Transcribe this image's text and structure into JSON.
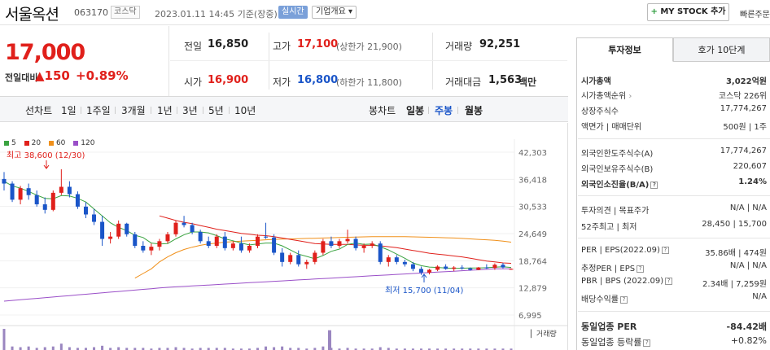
{
  "header": {
    "stock_name": "서울옥션",
    "stock_code": "063170",
    "market": "코스닥",
    "time": "2023.01.11 14:45 기준(장중)",
    "realtime": "실시간",
    "company_overview": "기업개요 ▾",
    "my_stock_button": "MY STOCK 추가",
    "my_stock_plus": "+",
    "quick_order": "빠른주문"
  },
  "price": {
    "current": "17,000",
    "prev_day_label": "전일대비",
    "change_amount": "▲150",
    "change_percent": "+0.89%"
  },
  "summary": {
    "prev_close_label": "전일",
    "prev_close": "16,850",
    "high_label": "고가",
    "high": "17,100",
    "upper_limit": "(상한가 21,900)",
    "volume_label": "거래량",
    "volume": "92,251",
    "open_label": "시가",
    "open": "16,900",
    "low_label": "저가",
    "low": "16,800",
    "lower_limit": "(하한가 11,800)",
    "amount_label": "거래대금",
    "amount": "1,563",
    "amount_unit": "백만"
  },
  "chart_tabs": {
    "line_label": "선차트",
    "periods": [
      "1일",
      "1주일",
      "3개월",
      "1년",
      "3년",
      "5년",
      "10년"
    ],
    "candle_label": "봉차트",
    "candle_periods": [
      "일봉",
      "주봉",
      "월봉"
    ],
    "selected_candle": "주봉"
  },
  "chart_data": {
    "type": "candlestick",
    "title": "",
    "legend": [
      "5",
      "20",
      "60",
      "120"
    ],
    "legend_colors": [
      "#3aa340",
      "#e0201b",
      "#f0901a",
      "#9a4fc8"
    ],
    "y_ticks": [
      "42,303",
      "36,418",
      "30,533",
      "24,649",
      "18,764",
      "12,879",
      "6,995"
    ],
    "ylim": [
      6995,
      42303
    ],
    "annotations": {
      "high": "최고 38,600 (12/30)",
      "low": "최저 15,700 (11/04)"
    },
    "volume_label": "거래량",
    "candles": [
      [
        36500,
        38000,
        34000,
        35500
      ],
      [
        35500,
        36000,
        31500,
        32000
      ],
      [
        32000,
        35000,
        31000,
        34500
      ],
      [
        34500,
        35500,
        32000,
        33000
      ],
      [
        33000,
        34000,
        30500,
        31000
      ],
      [
        31000,
        32500,
        29000,
        29800
      ],
      [
        29800,
        34000,
        29500,
        33500
      ],
      [
        33500,
        38600,
        33000,
        34800
      ],
      [
        34800,
        36000,
        32500,
        33200
      ],
      [
        33200,
        33800,
        30000,
        30500
      ],
      [
        30500,
        31500,
        28000,
        28800
      ],
      [
        28800,
        30000,
        26500,
        27200
      ],
      [
        27200,
        28500,
        22000,
        23500
      ],
      [
        23500,
        25000,
        22500,
        24000
      ],
      [
        24000,
        27500,
        23500,
        26800
      ],
      [
        26800,
        27000,
        24000,
        24500
      ],
      [
        24500,
        25000,
        21500,
        22000
      ],
      [
        22000,
        23000,
        20500,
        21000
      ],
      [
        21000,
        22500,
        20000,
        21800
      ],
      [
        21800,
        23500,
        21000,
        23000
      ],
      [
        23000,
        25000,
        22500,
        24500
      ],
      [
        24500,
        27500,
        24000,
        27000
      ],
      [
        27000,
        28500,
        26000,
        26500
      ],
      [
        26500,
        27000,
        24500,
        25000
      ],
      [
        25000,
        25500,
        22500,
        23000
      ],
      [
        23000,
        24000,
        21500,
        22000
      ],
      [
        22000,
        24500,
        21500,
        24000
      ],
      [
        24000,
        25000,
        21000,
        21500
      ],
      [
        21500,
        23000,
        21000,
        22500
      ],
      [
        22500,
        24000,
        20500,
        21000
      ],
      [
        21000,
        22500,
        20500,
        22000
      ],
      [
        22000,
        24500,
        21500,
        24000
      ],
      [
        24000,
        27000,
        23500,
        23800
      ],
      [
        23800,
        24500,
        20000,
        20500
      ],
      [
        20500,
        21500,
        17500,
        18500
      ],
      [
        18500,
        20500,
        18000,
        20000
      ],
      [
        20000,
        21000,
        17500,
        18000
      ],
      [
        18000,
        19000,
        17000,
        18500
      ],
      [
        18500,
        21000,
        18000,
        20500
      ],
      [
        20500,
        23500,
        20000,
        23000
      ],
      [
        23000,
        24000,
        21500,
        22000
      ],
      [
        22000,
        23500,
        21500,
        23000
      ],
      [
        23000,
        25500,
        22500,
        23500
      ],
      [
        23500,
        24000,
        21000,
        21500
      ],
      [
        21500,
        22500,
        20500,
        22000
      ],
      [
        22000,
        23000,
        21500,
        22500
      ],
      [
        22500,
        23000,
        18000,
        18500
      ],
      [
        18500,
        20000,
        17500,
        19500
      ],
      [
        19500,
        20000,
        18000,
        18500
      ],
      [
        18500,
        19000,
        17500,
        18000
      ],
      [
        18000,
        18500,
        16500,
        17000
      ],
      [
        17000,
        17500,
        15700,
        16200
      ],
      [
        16200,
        17000,
        15800,
        16800
      ],
      [
        16800,
        17800,
        16500,
        17500
      ],
      [
        17500,
        18000,
        16800,
        17000
      ],
      [
        17000,
        17600,
        16500,
        17300
      ],
      [
        17300,
        17800,
        16800,
        17100
      ],
      [
        17100,
        17300,
        16600,
        16800
      ],
      [
        16800,
        17400,
        16700,
        17300
      ],
      [
        17300,
        18000,
        17000,
        17200
      ],
      [
        17200,
        18200,
        16800,
        17900
      ],
      [
        17900,
        18300,
        17100,
        17300
      ],
      [
        16900,
        17100,
        16800,
        17000
      ]
    ],
    "volumes": [
      3,
      0.5,
      0.4,
      0.5,
      0.3,
      0.4,
      0.5,
      0.9,
      0.4,
      0.3,
      0.3,
      0.4,
      0.6,
      0.3,
      0.4,
      0.3,
      0.3,
      0.3,
      0.2,
      0.3,
      0.3,
      0.4,
      0.3,
      0.2,
      0.3,
      0.3,
      0.3,
      0.3,
      0.2,
      0.2,
      0.2,
      0.3,
      0.5,
      0.4,
      0.5,
      0.3,
      0.3,
      0.2,
      0.3,
      0.5,
      0.3,
      0.2,
      0.3,
      0.2,
      0.2,
      0.2,
      0.4,
      0.3,
      0.2,
      0.2,
      0.2,
      0.2,
      0.2,
      0.2,
      0.2,
      0.2,
      0.2,
      0.2,
      0.2,
      0.2,
      0.2,
      0.2,
      0.2
    ],
    "big_volume_bar": 2.8,
    "ma5": [
      36000,
      35000,
      34500,
      33800,
      33000,
      32300,
      32200,
      32900,
      32800,
      32300,
      31500,
      30000,
      28500,
      27000,
      26000,
      25300,
      24300,
      23800,
      22600,
      22400,
      22500,
      23500,
      24400,
      25000,
      25000,
      24800,
      24200,
      23500,
      23100,
      22600,
      22200,
      22400,
      22600,
      22600,
      22000,
      21100,
      20200,
      19700,
      19200,
      19900,
      20800,
      21300,
      22300,
      22600,
      22300,
      22400,
      21800,
      21100,
      20200,
      19300,
      18300,
      17700,
      17400,
      17300,
      17200,
      17100,
      17150,
      17200,
      17200,
      17250,
      17350,
      17450,
      17300
    ],
    "ma20": [
      null,
      null,
      null,
      null,
      null,
      null,
      null,
      null,
      null,
      null,
      null,
      null,
      null,
      null,
      null,
      null,
      null,
      null,
      null,
      28500,
      28000,
      27500,
      27100,
      26800,
      26400,
      26000,
      25600,
      25300,
      25000,
      24700,
      24500,
      24300,
      24200,
      24000,
      23700,
      23400,
      23100,
      22800,
      22500,
      22400,
      22300,
      22300,
      22300,
      22200,
      22100,
      22100,
      22000,
      21800,
      21600,
      21300,
      21000,
      20700,
      20400,
      20200,
      20000,
      19800,
      19600,
      19300,
      19000,
      18700,
      18500,
      18300,
      18200
    ],
    "ma60": [
      null,
      null,
      null,
      null,
      null,
      null,
      null,
      null,
      null,
      null,
      null,
      null,
      null,
      null,
      null,
      null,
      15000,
      16000,
      17000,
      18500,
      19600,
      20500,
      21200,
      21700,
      22100,
      22400,
      22600,
      22800,
      22900,
      23000,
      23100,
      23200,
      23300,
      23400,
      23450,
      23500,
      23550,
      23600,
      23650,
      23700,
      23750,
      23800,
      23850,
      23900,
      23950,
      24000,
      24000,
      24000,
      24000,
      24000,
      23950,
      23900,
      23850,
      23800,
      23750,
      23700,
      23600,
      23500,
      23400,
      23300,
      23200,
      23000,
      22800
    ],
    "ma120": [
      10000,
      10150,
      10300,
      10450,
      10600,
      10750,
      10900,
      11050,
      11200,
      11350,
      11500,
      11650,
      11800,
      11950,
      12100,
      12250,
      12400,
      12550,
      12700,
      12850,
      13000,
      13100,
      13200,
      13300,
      13400,
      13500,
      13600,
      13700,
      13800,
      13900,
      14000,
      14100,
      14200,
      14300,
      14400,
      14500,
      14600,
      14700,
      14800,
      14900,
      15000,
      15100,
      15200,
      15300,
      15400,
      15500,
      15600,
      15700,
      15800,
      15900,
      16000,
      16100,
      16200,
      16300,
      16400,
      16500,
      16600,
      16700,
      16800,
      16900,
      17000,
      17000,
      17000
    ]
  },
  "right_panel": {
    "tab_invest": "투자정보",
    "tab_ask": "호가 10단계",
    "rows": [
      {
        "label": "시가총액",
        "value": "3,022억원"
      },
      {
        "label": "시가총액순위",
        "value": "코스닥 226위"
      },
      {
        "label": "상장주식수",
        "value": "17,774,267"
      },
      {
        "label": "액면가 | 매매단위",
        "value": "500원 | 1주"
      },
      {
        "label": "외국인한도주식수(A)",
        "value": "17,774,267"
      },
      {
        "label": "외국인보유주식수(B)",
        "value": "220,607"
      },
      {
        "label": "외국인소진율(B/A)",
        "value": "1.24%"
      },
      {
        "label": "투자의견 | 목표주가",
        "value": "N/A | N/A"
      },
      {
        "label": "52주최고 | 최저",
        "value": "28,450 | 15,700"
      },
      {
        "label": "PER | EPS(2022.09)",
        "value": "35.86배 | 474원"
      },
      {
        "label": "추정PER | EPS",
        "value": "N/A | N/A"
      },
      {
        "label": "PBR | BPS (2022.09)",
        "value": "2.34배 | 7,259원"
      },
      {
        "label": "배당수익률",
        "value": "N/A"
      },
      {
        "label": "동일업종 PER",
        "value": "-84.42배"
      },
      {
        "label": "동일업종 등락률",
        "value": "+0.82%"
      }
    ]
  }
}
